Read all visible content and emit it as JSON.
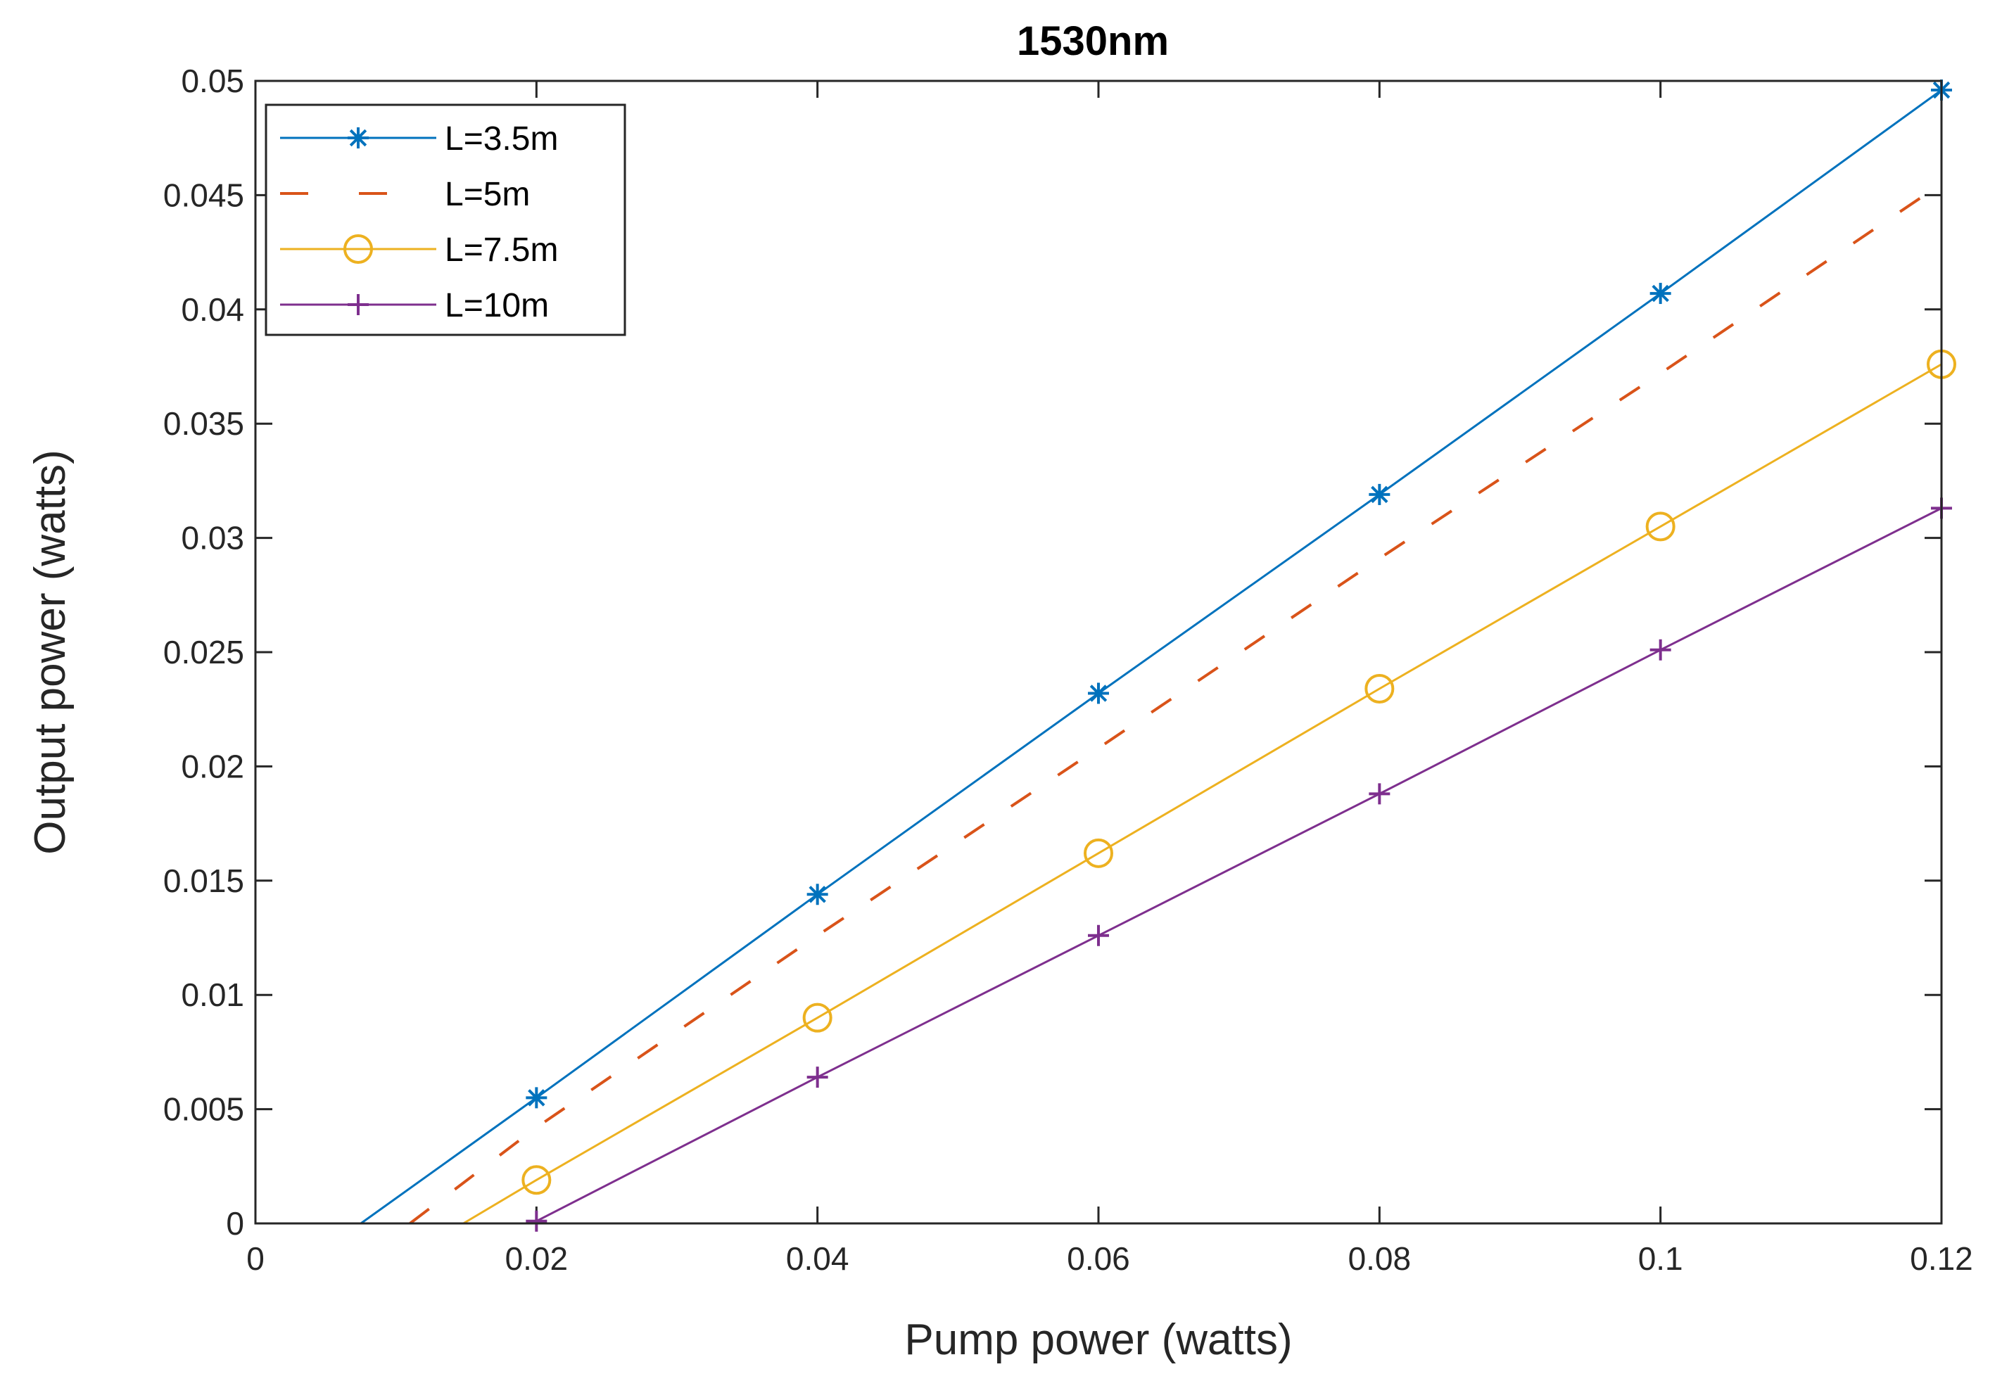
{
  "chart_data": {
    "type": "line",
    "title": "1530nm",
    "xlabel": "Pump power (watts)",
    "ylabel": "Output power (watts)",
    "xlim": [
      0,
      0.12
    ],
    "ylim": [
      0,
      0.05
    ],
    "xticks": [
      0,
      0.02,
      0.04,
      0.06,
      0.08,
      0.1,
      0.12
    ],
    "xtick_labels": [
      "0",
      "0.02",
      "0.04",
      "0.06",
      "0.08",
      "0.1",
      "0.12"
    ],
    "yticks": [
      0,
      0.005,
      0.01,
      0.015,
      0.02,
      0.025,
      0.03,
      0.035,
      0.04,
      0.045,
      0.05
    ],
    "ytick_labels": [
      "0",
      "0.005",
      "0.01",
      "0.015",
      "0.02",
      "0.025",
      "0.03",
      "0.035",
      "0.04",
      "0.045",
      "0.05"
    ],
    "grid": false,
    "legend_position": "top-left",
    "series": [
      {
        "name": "L=3.5m",
        "color": "#0072BD",
        "line_style": "solid",
        "marker": "asterisk",
        "x": [
          0.0075,
          0.02,
          0.04,
          0.06,
          0.08,
          0.1,
          0.12
        ],
        "y": [
          0,
          0.0055,
          0.0144,
          0.0232,
          0.0319,
          0.0407,
          0.0496
        ],
        "marker_x": [
          0.02,
          0.04,
          0.06,
          0.08,
          0.1,
          0.12
        ]
      },
      {
        "name": "L=5m",
        "color": "#D95319",
        "line_style": "dashed",
        "marker": "none",
        "x": [
          0.011,
          0.02,
          0.04,
          0.06,
          0.08,
          0.1,
          0.12
        ],
        "y": [
          0,
          0.0042,
          0.0126,
          0.0208,
          0.0291,
          0.0372,
          0.0455
        ],
        "marker_x": []
      },
      {
        "name": "L=7.5m",
        "color": "#EDB120",
        "line_style": "solid",
        "marker": "circle",
        "x": [
          0.0148,
          0.02,
          0.04,
          0.06,
          0.08,
          0.1,
          0.12
        ],
        "y": [
          0,
          0.0019,
          0.009,
          0.0162,
          0.0234,
          0.0305,
          0.0376
        ],
        "marker_x": [
          0.02,
          0.04,
          0.06,
          0.08,
          0.1,
          0.12
        ]
      },
      {
        "name": "L=10m",
        "color": "#7E2F8E",
        "line_style": "solid",
        "marker": "plus",
        "x": [
          0.02,
          0.04,
          0.06,
          0.08,
          0.1,
          0.12
        ],
        "y": [
          0.0001,
          0.0064,
          0.0126,
          0.0188,
          0.0251,
          0.0313
        ],
        "marker_x": [
          0.02,
          0.04,
          0.06,
          0.08,
          0.1,
          0.12
        ]
      }
    ]
  }
}
